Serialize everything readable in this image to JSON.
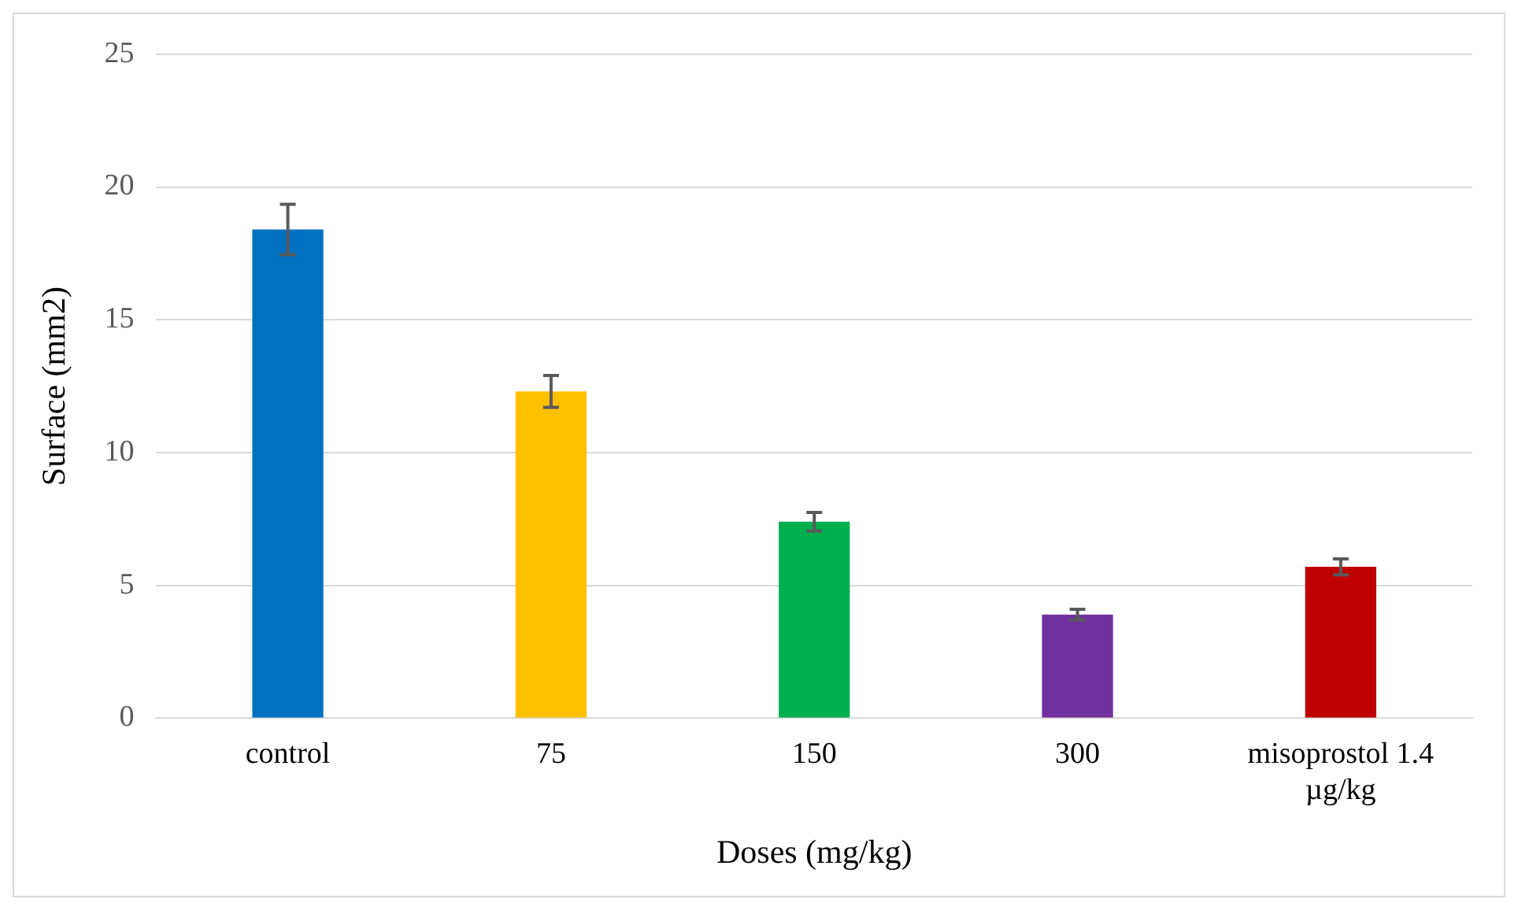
{
  "chart_data": {
    "type": "bar",
    "xlabel": "Doses (mg/kg)",
    "ylabel": "Surface (mm2)",
    "categories": [
      "control",
      "75",
      "150",
      "300",
      "misoprostol 1.4 µg/kg"
    ],
    "values": [
      18.4,
      12.3,
      7.4,
      3.9,
      5.7
    ],
    "colors": [
      "#0070c0",
      "#ffc000",
      "#00b050",
      "#7030a0",
      "#c00000"
    ],
    "errors": [
      0.95,
      0.6,
      0.35,
      0.2,
      0.3
    ],
    "ylim": [
      0,
      25
    ],
    "yticks": [
      0,
      5,
      10,
      15,
      20,
      25
    ],
    "grid": "y",
    "legend": false
  }
}
